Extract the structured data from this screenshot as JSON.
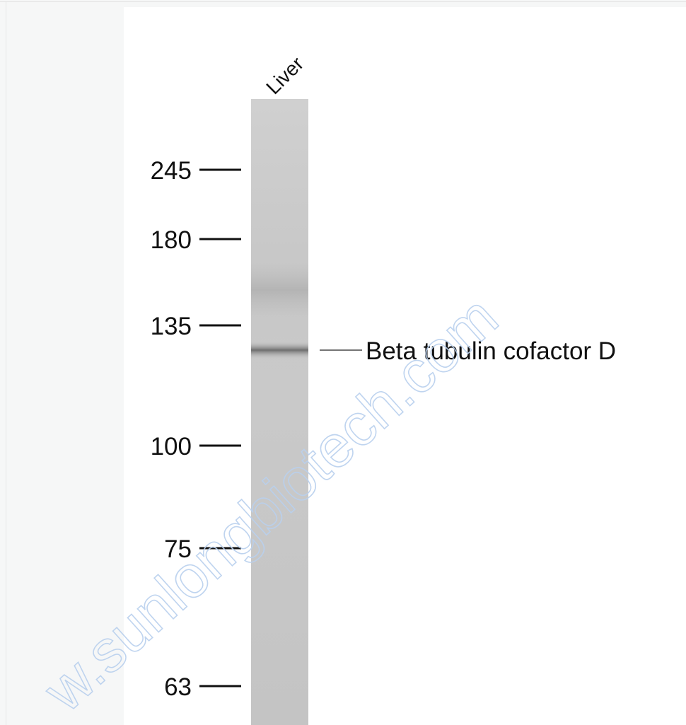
{
  "lane_label": "Liver",
  "markers": [
    245,
    180,
    135,
    100,
    75,
    63
  ],
  "band_label": "Beta tubulin cofactor D",
  "watermark": "w.sunlongbiotech.com"
}
